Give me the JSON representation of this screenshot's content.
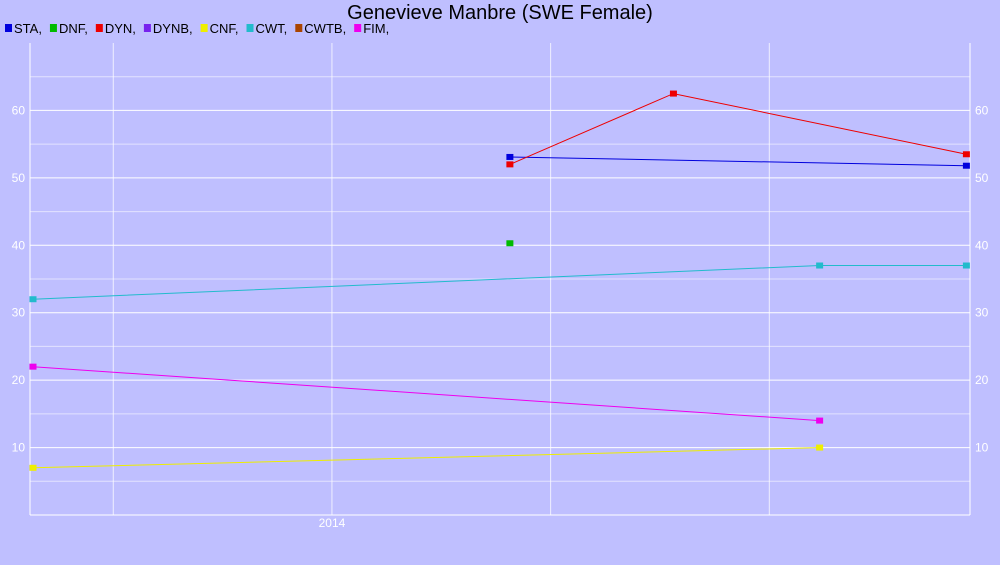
{
  "chart_data": {
    "type": "line",
    "title": "Genevieve Manbre (SWE Female)",
    "xlabel": "",
    "ylabel": "",
    "x_type": "date",
    "xlim": [
      "2012-08-15",
      "2016-12-01"
    ],
    "ylim": [
      0,
      70
    ],
    "x_ticks": [
      {
        "x": "2014-01-01",
        "label": "2014"
      }
    ],
    "x_grid": [
      "2013-01-01",
      "2014-01-01",
      "2015-01-01",
      "2016-01-01"
    ],
    "y_ticks": [
      10,
      20,
      30,
      40,
      50,
      60
    ],
    "y_grid": [
      5,
      10,
      15,
      20,
      25,
      30,
      35,
      40,
      45,
      50,
      55,
      60,
      65
    ],
    "grid": true,
    "legend_position": "top-left",
    "series": [
      {
        "name": "STA",
        "color": "#0000dd",
        "points": [
          {
            "x": "2014-10-25",
            "y": 53.1
          },
          {
            "x": "2016-11-25",
            "y": 51.8
          }
        ]
      },
      {
        "name": "DNF",
        "color": "#00bb00",
        "points": [
          {
            "x": "2014-10-25",
            "y": 40.3
          }
        ]
      },
      {
        "name": "DYN",
        "color": "#ee0000",
        "points": [
          {
            "x": "2014-10-25",
            "y": 52.0
          },
          {
            "x": "2015-07-25",
            "y": 62.5
          },
          {
            "x": "2016-11-25",
            "y": 53.5
          }
        ]
      },
      {
        "name": "DYNB",
        "color": "#7722ee",
        "points": []
      },
      {
        "name": "CNF",
        "color": "#eeee00",
        "points": [
          {
            "x": "2012-08-20",
            "y": 7.0
          },
          {
            "x": "2016-03-25",
            "y": 10.0
          }
        ]
      },
      {
        "name": "CWT",
        "color": "#22bbcc",
        "points": [
          {
            "x": "2012-08-20",
            "y": 32.0
          },
          {
            "x": "2016-03-25",
            "y": 37.0
          },
          {
            "x": "2016-11-25",
            "y": 37.0
          }
        ]
      },
      {
        "name": "CWTB",
        "color": "#aa4400",
        "points": []
      },
      {
        "name": "FIM",
        "color": "#ee00ee",
        "points": [
          {
            "x": "2012-08-20",
            "y": 22.0
          },
          {
            "x": "2016-03-25",
            "y": 14.0
          }
        ]
      }
    ]
  }
}
